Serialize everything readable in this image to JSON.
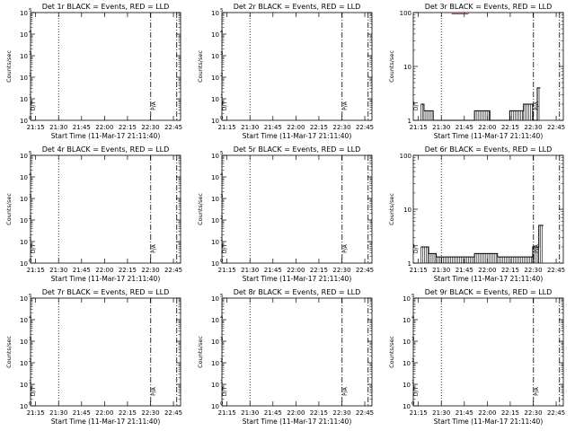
{
  "xticks": [
    "21:15",
    "21:30",
    "21:45",
    "22:00",
    "22:15",
    "22:30",
    "22:45"
  ],
  "xlabel": "Start Time (11-Mar-17 21:11:40)",
  "ylabel": "Counts/sec",
  "small_label_left": "D/T",
  "small_label_right": "P/A",
  "colors": {
    "events": "#000000",
    "lld": "#ff0000"
  },
  "chart_data": [
    {
      "type": "line",
      "title": "Det 1r BLACK = Events, RED = LLD",
      "x_minutes_after_2111": [],
      "yscale": "log",
      "ylim": [
        1,
        100000
      ],
      "yticks": [
        "10^0",
        "10^1",
        "10^2",
        "10^3",
        "10^4",
        "10^5"
      ],
      "series": []
    },
    {
      "type": "line",
      "title": "Det 2r BLACK = Events, RED = LLD",
      "yscale": "log",
      "ylim": [
        1,
        100000
      ],
      "yticks": [
        "10^0",
        "10^1",
        "10^2",
        "10^3",
        "10^4",
        "10^5"
      ],
      "series": []
    },
    {
      "type": "line",
      "title": "Det 3r BLACK = Events, RED = LLD",
      "yscale": "log",
      "ylim": [
        1,
        100
      ],
      "yticks": [
        "1",
        "10",
        "100"
      ],
      "series": [
        {
          "color": "#000000",
          "segments": [
            {
              "x_start_min": 5,
              "x_end_min": 7,
              "level": 2
            },
            {
              "x_start_min": 7,
              "x_end_min": 13,
              "level": 1.5
            },
            {
              "x_start_min": 13,
              "x_end_min": 40,
              "level": 1
            },
            {
              "x_start_min": 40,
              "x_end_min": 50,
              "level": 1.5
            },
            {
              "x_start_min": 50,
              "x_end_min": 63,
              "level": 1
            },
            {
              "x_start_min": 63,
              "x_end_min": 72,
              "level": 1.5
            },
            {
              "x_start_min": 72,
              "x_end_min": 78,
              "level": 2
            },
            {
              "x_start_min": 78,
              "x_end_min": 81,
              "level": 1
            },
            {
              "x_start_min": 81,
              "x_end_min": 83,
              "level": 4
            }
          ]
        },
        {
          "color": "#ff0000",
          "segments": [
            {
              "x_start_min": 25,
              "x_end_min": 36,
              "level": 95
            }
          ]
        }
      ]
    },
    {
      "type": "line",
      "title": "Det 4r BLACK = Events, RED = LLD",
      "yscale": "log",
      "ylim": [
        1,
        100000
      ],
      "yticks": [
        "10^0",
        "10^1",
        "10^2",
        "10^3",
        "10^4",
        "10^5"
      ],
      "series": []
    },
    {
      "type": "line",
      "title": "Det 5r BLACK = Events, RED = LLD",
      "yscale": "log",
      "ylim": [
        1,
        100000
      ],
      "yticks": [
        "10^0",
        "10^1",
        "10^2",
        "10^3",
        "10^4",
        "10^5"
      ],
      "series": []
    },
    {
      "type": "line",
      "title": "Det 6r BLACK = Events, RED = LLD",
      "yscale": "log",
      "ylim": [
        1,
        100
      ],
      "yticks": [
        "1",
        "10",
        "100"
      ],
      "series": [
        {
          "color": "#000000",
          "segments": [
            {
              "x_start_min": 5,
              "x_end_min": 10,
              "level": 2
            },
            {
              "x_start_min": 10,
              "x_end_min": 15,
              "level": 1.5
            },
            {
              "x_start_min": 15,
              "x_end_min": 40,
              "level": 1.3
            },
            {
              "x_start_min": 40,
              "x_end_min": 55,
              "level": 1.5
            },
            {
              "x_start_min": 55,
              "x_end_min": 78,
              "level": 1.3
            },
            {
              "x_start_min": 78,
              "x_end_min": 82,
              "level": 2
            },
            {
              "x_start_min": 82,
              "x_end_min": 85,
              "level": 5
            }
          ]
        }
      ]
    },
    {
      "type": "line",
      "title": "Det 7r BLACK = Events, RED = LLD",
      "yscale": "log",
      "ylim": [
        1,
        100000
      ],
      "yticks": [
        "10^0",
        "10^1",
        "10^2",
        "10^3",
        "10^4",
        "10^5"
      ],
      "series": []
    },
    {
      "type": "line",
      "title": "Det 8r BLACK = Events, RED = LLD",
      "yscale": "log",
      "ylim": [
        1,
        100000
      ],
      "yticks": [
        "10^0",
        "10^1",
        "10^2",
        "10^3",
        "10^4",
        "10^5"
      ],
      "series": []
    },
    {
      "type": "line",
      "title": "Det 9r BLACK = Events, RED = LLD",
      "yscale": "log",
      "ylim": [
        1,
        100000
      ],
      "yticks": [
        "10^0",
        "10^1",
        "10^2",
        "10^3",
        "10^4",
        "10^5"
      ],
      "series": []
    }
  ]
}
